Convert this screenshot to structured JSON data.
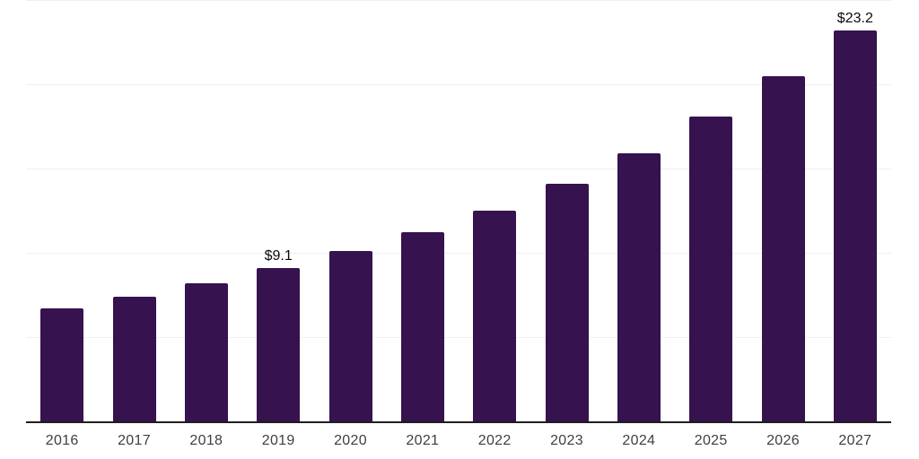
{
  "chart_data": {
    "type": "bar",
    "categories": [
      "2016",
      "2017",
      "2018",
      "2019",
      "2020",
      "2021",
      "2022",
      "2023",
      "2024",
      "2025",
      "2026",
      "2027"
    ],
    "values": [
      6.7,
      7.4,
      8.2,
      9.1,
      10.1,
      11.2,
      12.5,
      14.1,
      15.9,
      18.1,
      20.5,
      23.2
    ],
    "data_labels": [
      "",
      "",
      "",
      "$9.1",
      "",
      "",
      "",
      "",
      "",
      "",
      "",
      "$23.2"
    ],
    "title": "",
    "xlabel": "",
    "ylabel": "",
    "ylim": [
      0,
      25
    ],
    "grid_step": 5,
    "grid": true,
    "legend": false,
    "colors": {
      "bar": "#36124e",
      "gridline": "#f0f0f0",
      "axis_line": "#1f1f1f",
      "tick_label": "#3f3f3f",
      "data_label": "#0a0a0a",
      "background": "#ffffff"
    }
  }
}
